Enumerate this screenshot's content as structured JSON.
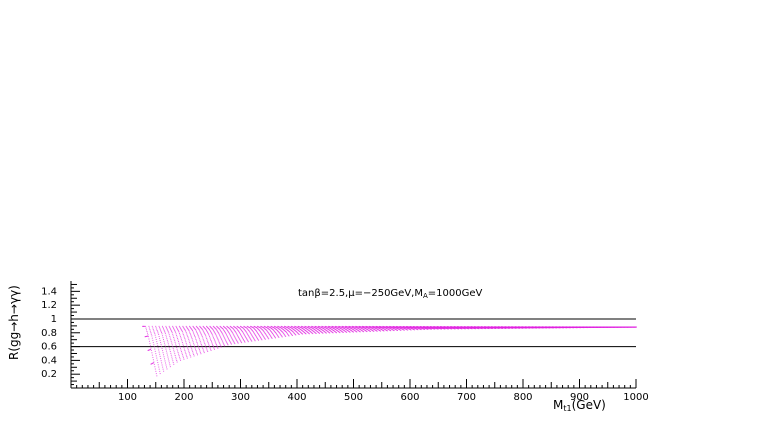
{
  "chart_data": {
    "type": "scatter",
    "title": "",
    "annotation": "tanβ=2.5,μ=−250GeV,M_A=1000GeV",
    "annotation_parts": {
      "lead": "tanβ=2.5,μ=−250GeV,M",
      "sub": "A",
      "tail": "=1000GeV"
    },
    "xlabel": "M_t1(GeV)",
    "xlabel_parts": {
      "lead": "M",
      "sub": "t1",
      "tail": "(GeV)"
    },
    "ylabel": "R(gg→h→γγ)",
    "xlim": [
      0,
      1000
    ],
    "ylim": [
      0,
      1.55
    ],
    "xticks": [
      100,
      200,
      300,
      400,
      500,
      600,
      700,
      800,
      900,
      1000
    ],
    "yticks": [
      0.2,
      0.4,
      0.6,
      0.8,
      1,
      1.2,
      1.4
    ],
    "reference_lines": [
      1.0,
      0.6
    ],
    "grid": false,
    "series": [
      {
        "color": "#e020e0",
        "description_of_band": "dotted scan curves starting near M_t1≈125 GeV at low R and converging toward R≈0.89 at large M_t1",
        "curves": [
          {
            "x": [
              125,
              150,
              200,
              300,
              500,
              1000
            ],
            "y": [
              0.9,
              0.9,
              0.9,
              0.9,
              0.9,
              0.89
            ]
          },
          {
            "x": [
              130,
              160,
              220,
              320,
              520,
              1000
            ],
            "y": [
              0.75,
              0.8,
              0.85,
              0.88,
              0.89,
              0.89
            ]
          },
          {
            "x": [
              135,
              170,
              240,
              350,
              560,
              1000
            ],
            "y": [
              0.55,
              0.66,
              0.78,
              0.85,
              0.88,
              0.89
            ]
          },
          {
            "x": [
              140,
              180,
              260,
              380,
              600,
              1000
            ],
            "y": [
              0.35,
              0.52,
              0.7,
              0.82,
              0.87,
              0.89
            ]
          },
          {
            "x": [
              145,
              190,
              280,
              410,
              640,
              1000
            ],
            "y": [
              0.15,
              0.4,
              0.64,
              0.79,
              0.86,
              0.89
            ]
          }
        ]
      }
    ]
  }
}
